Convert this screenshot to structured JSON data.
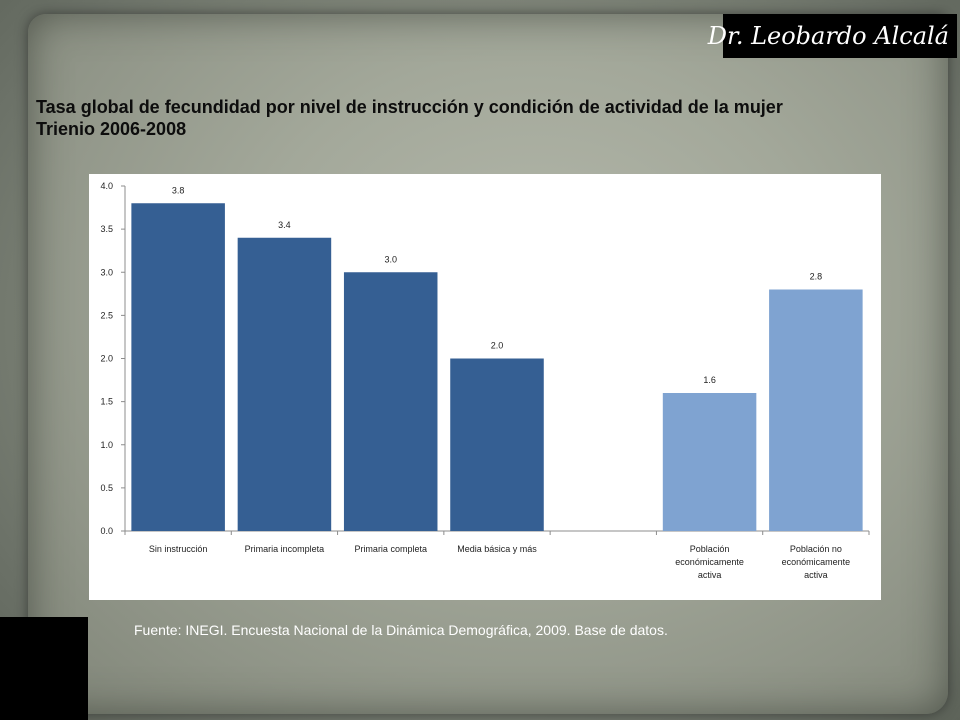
{
  "author": "Dr. Leobardo Alcalá",
  "title_line1": "Tasa global de fecundidad por nivel de instrucción y condición de actividad de la mujer",
  "title_line2": "Trienio 2006-2008",
  "source": "Fuente: INEGI. Encuesta Nacional de la Dinámica Demográfica, 2009. Base de datos.",
  "chart_data": {
    "type": "bar",
    "title": "",
    "xlabel": "",
    "ylabel": "",
    "ylim": [
      0,
      4.0
    ],
    "yticks": [
      "0.0",
      "0.5",
      "1.0",
      "1.5",
      "2.0",
      "2.5",
      "3.0",
      "3.5",
      "4.0"
    ],
    "categories": [
      [
        "Sin instrucción"
      ],
      [
        "Primaria incompleta"
      ],
      [
        "Primaria completa"
      ],
      [
        "Media básica y más"
      ],
      [],
      [
        "Población",
        "económicamente",
        "activa"
      ],
      [
        "Población no",
        "económicamente",
        "activa"
      ]
    ],
    "values": [
      3.8,
      3.4,
      3.0,
      2.0,
      null,
      1.6,
      2.8
    ],
    "data_labels": [
      "3.8",
      "3.4",
      "3.0",
      "2.0",
      "",
      "1.6",
      "2.8"
    ],
    "colors": [
      "#355f93",
      "#355f93",
      "#355f93",
      "#355f93",
      "#355f93",
      "#7fa3d1",
      "#7fa3d1"
    ],
    "grid": false,
    "legend": "none"
  }
}
